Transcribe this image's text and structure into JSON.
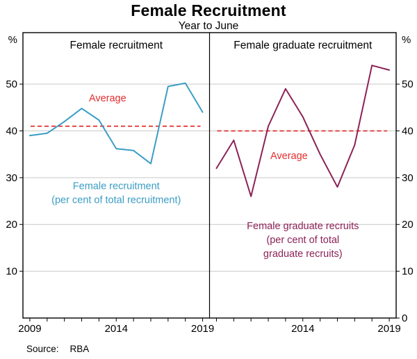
{
  "footer": {
    "source_label": "Source:",
    "source_value": "RBA"
  },
  "chart_data": {
    "type": "line",
    "title": "Female Recruitment",
    "subtitle": "Year to June",
    "unit": "%",
    "ylim": [
      0,
      61
    ],
    "gridlines": [
      10,
      20,
      30,
      40,
      50
    ],
    "yticks_left": [
      10,
      20,
      30,
      40,
      50
    ],
    "yticks_right": [
      0,
      10,
      20,
      30,
      40,
      50
    ],
    "grid": true,
    "legend_position": "none",
    "panels": [
      {
        "title": "Female recruitment",
        "xlim": [
          2008.6,
          2019.4
        ],
        "xticks": [
          2009,
          2014,
          2019
        ],
        "series": {
          "name": "Female recruitment (per cent of total recruitment)",
          "color": "#3b9dc4",
          "x": [
            2009,
            2010,
            2011,
            2012,
            2013,
            2014,
            2015,
            2016,
            2017,
            2018,
            2019
          ],
          "values": [
            39,
            39.5,
            42,
            44.8,
            42.3,
            36.2,
            35.8,
            33,
            49.5,
            50.2,
            44
          ]
        },
        "average": {
          "label": "Average",
          "value": 41,
          "color": "#e22d2e"
        },
        "annotations": [
          {
            "lines": [
              "Average"
            ],
            "x": 2013.5,
            "y": 46.3,
            "color": "#e22d2e"
          },
          {
            "lines": [
              "Female recruitment",
              "(per cent of total recruitment)"
            ],
            "x": 2014,
            "y": 27.5,
            "color": "#3b9dc4"
          }
        ]
      },
      {
        "title": "Female graduate recruitment",
        "xlim": [
          2008.6,
          2019.4
        ],
        "xticks": [
          2014,
          2019
        ],
        "series": {
          "name": "Female graduate recruits (per cent of total graduate recruits)",
          "color": "#8c2257",
          "x": [
            2009,
            2010,
            2011,
            2012,
            2013,
            2014,
            2015,
            2016,
            2017,
            2018,
            2019
          ],
          "values": [
            32,
            38,
            26,
            41,
            49,
            43,
            35,
            28,
            37,
            54,
            53
          ]
        },
        "average": {
          "label": "Average",
          "value": 40,
          "color": "#e22d2e"
        },
        "annotations": [
          {
            "lines": [
              "Average"
            ],
            "x": 2013.2,
            "y": 34,
            "color": "#e22d2e"
          },
          {
            "lines": [
              "Female graduate recruits",
              "(per cent of total",
              "graduate recruits)"
            ],
            "x": 2014,
            "y": 19,
            "color": "#8c2257"
          }
        ]
      }
    ]
  }
}
